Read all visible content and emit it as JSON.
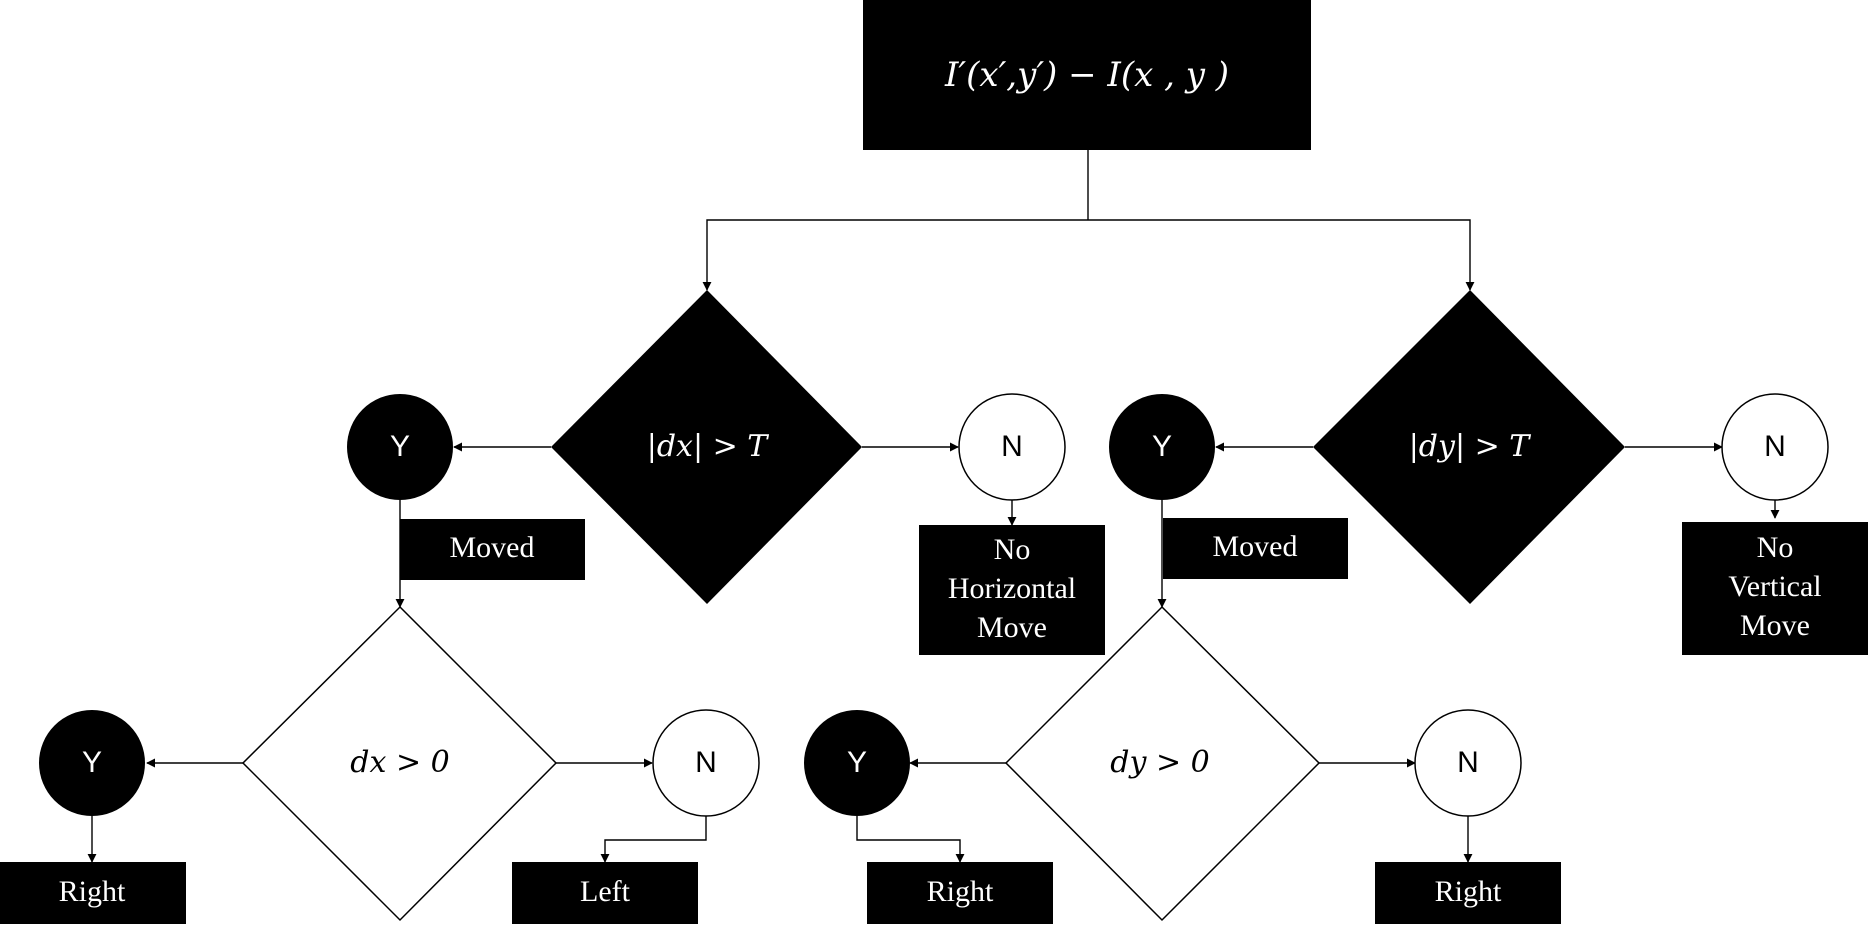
{
  "colors": {
    "fill_dark": "#000000",
    "fill_light": "#ffffff",
    "stroke": "#000000"
  },
  "diagram": {
    "root": {
      "label": "I′(x′,y′)  −  I(x , y )"
    },
    "branch_x": {
      "condition": {
        "label": "|dx| > T"
      },
      "yes": {
        "label": "Y"
      },
      "no": {
        "label": "N"
      },
      "moved": {
        "label": "Moved"
      },
      "no_move": {
        "lines": [
          "No",
          "Horizontal",
          "Move"
        ]
      },
      "sign": {
        "label": "dx > 0"
      },
      "sign_yes": {
        "label": "Y"
      },
      "sign_no": {
        "label": "N"
      },
      "result_yes": {
        "label": "Right"
      },
      "result_no": {
        "label": "Left"
      }
    },
    "branch_y": {
      "condition": {
        "label": "|dy| > T"
      },
      "yes": {
        "label": "Y"
      },
      "no": {
        "label": "N"
      },
      "moved": {
        "label": "Moved"
      },
      "no_move": {
        "lines": [
          "No",
          "Vertical",
          "Move"
        ]
      },
      "sign": {
        "label": "dy > 0"
      },
      "sign_yes": {
        "label": "Y"
      },
      "sign_no": {
        "label": "N"
      },
      "result_yes": {
        "label": "Right"
      },
      "result_no": {
        "label": "Right"
      }
    }
  }
}
